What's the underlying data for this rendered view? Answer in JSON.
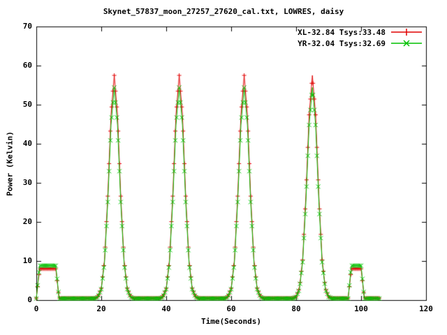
{
  "chart_data": {
    "type": "line",
    "title": "Skynet_57837_moon_27257_27620_cal.txt, LOWRES, daisy",
    "xlabel": "Time(Seconds)",
    "ylabel": "Power (Kelvin)",
    "xlim": [
      0,
      120
    ],
    "ylim": [
      0,
      70
    ],
    "xticks": [
      0,
      20,
      40,
      60,
      80,
      100,
      120
    ],
    "yticks": [
      0,
      10,
      20,
      30,
      40,
      50,
      60,
      70
    ],
    "xtick_labels": [
      "0",
      "20",
      "40",
      "60",
      "80",
      "100",
      "120"
    ],
    "ytick_labels": [
      "0",
      "10",
      "20",
      "30",
      "40",
      "50",
      "60",
      "70"
    ],
    "grid": false,
    "legend_position": "top-right-inside",
    "x_start": 0,
    "x_step": 1,
    "features": {
      "peak_centers_s": [
        24,
        44,
        64,
        85
      ],
      "peak_height_K": 57.5,
      "cal_windows_s": [
        [
          1,
          6
        ],
        [
          97,
          100
        ]
      ],
      "cal_level_K": 8.5,
      "baseline_K": 0.5
    },
    "series": [
      {
        "name": "XL-32.84 Tsys:33.48",
        "color": "#e00000",
        "marker": "plus",
        "y": [
          0.5,
          8.0,
          8.0,
          8.0,
          8.0,
          8.0,
          8.0,
          0.5,
          0.5,
          0.5,
          0.5,
          0.5,
          0.5,
          0.5,
          0.5,
          0.5,
          0.5,
          0.5,
          0.5,
          0.9,
          3.0,
          10.3,
          26.6,
          47.4,
          57.5,
          47.4,
          26.6,
          10.3,
          3.0,
          0.9,
          0.5,
          0.5,
          0.5,
          0.5,
          0.5,
          0.5,
          0.5,
          0.5,
          0.5,
          0.9,
          3.0,
          10.3,
          26.6,
          47.4,
          57.5,
          47.4,
          26.6,
          10.3,
          3.0,
          0.9,
          0.5,
          0.5,
          0.5,
          0.5,
          0.5,
          0.5,
          0.5,
          0.5,
          0.5,
          0.9,
          3.0,
          10.3,
          26.6,
          47.4,
          57.5,
          47.4,
          26.6,
          10.3,
          3.0,
          0.9,
          0.5,
          0.5,
          0.5,
          0.5,
          0.5,
          0.5,
          0.5,
          0.5,
          0.5,
          0.5,
          0.9,
          3.0,
          10.3,
          26.6,
          47.4,
          57.5,
          47.4,
          26.6,
          10.3,
          3.0,
          0.9,
          0.5,
          0.5,
          0.5,
          0.5,
          0.5,
          0.5,
          8.0,
          8.0,
          8.0,
          8.0,
          0.5,
          0.5,
          0.5,
          0.5,
          0.5,
          0.5
        ]
      },
      {
        "name": "YR-32.04 Tsys:32.69",
        "color": "#00c000",
        "marker": "cross",
        "y": [
          0.4,
          8.8,
          8.8,
          8.8,
          8.8,
          8.8,
          8.8,
          0.4,
          0.4,
          0.4,
          0.4,
          0.4,
          0.4,
          0.4,
          0.4,
          0.4,
          0.4,
          0.4,
          0.4,
          0.8,
          2.8,
          9.7,
          25.1,
          44.8,
          54.4,
          44.8,
          25.1,
          9.7,
          2.8,
          0.8,
          0.4,
          0.4,
          0.4,
          0.4,
          0.4,
          0.4,
          0.4,
          0.4,
          0.4,
          0.8,
          2.8,
          9.7,
          25.1,
          44.8,
          54.4,
          44.8,
          25.1,
          9.7,
          2.8,
          0.8,
          0.4,
          0.4,
          0.4,
          0.4,
          0.4,
          0.4,
          0.4,
          0.4,
          0.4,
          0.8,
          2.8,
          9.7,
          25.1,
          44.8,
          54.4,
          44.8,
          25.1,
          9.7,
          2.8,
          0.8,
          0.4,
          0.4,
          0.4,
          0.4,
          0.4,
          0.4,
          0.4,
          0.4,
          0.4,
          0.4,
          0.8,
          2.8,
          9.7,
          25.1,
          44.8,
          54.4,
          44.8,
          25.1,
          9.7,
          2.8,
          0.8,
          0.4,
          0.4,
          0.4,
          0.4,
          0.4,
          0.4,
          8.8,
          8.8,
          8.8,
          8.8,
          0.4,
          0.4,
          0.4,
          0.4,
          0.4,
          0.4
        ]
      }
    ]
  }
}
